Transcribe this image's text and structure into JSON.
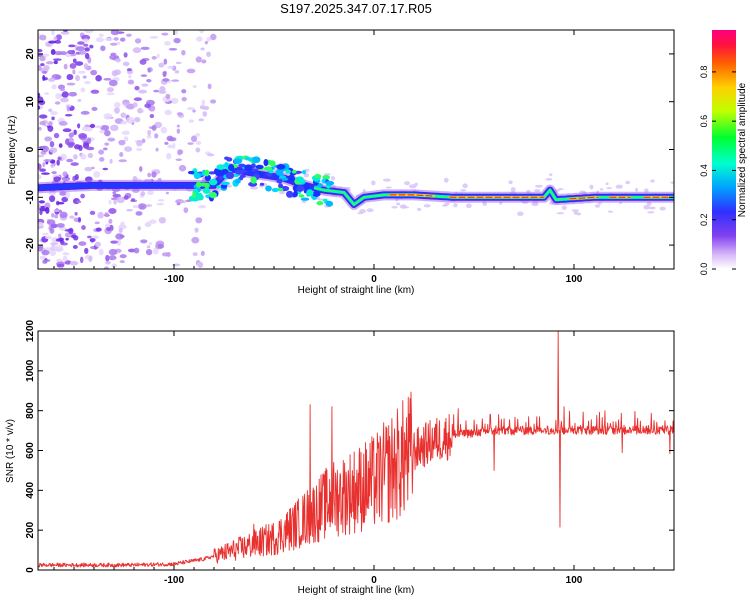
{
  "title": "S197.2025.347.07.17.R05",
  "colors": {
    "snr_line": "#e8312f",
    "spec_cloud": "#b48cf0",
    "spec_cloud_dark": "#6a1fe0",
    "axis": "#000000"
  },
  "chart_data": [
    {
      "type": "heatmap",
      "name": "spectrogram",
      "xlabel": "Height of straight line (km)",
      "ylabel": "Frequency (Hz)",
      "xlim": [
        -168,
        150
      ],
      "ylim": [
        -25,
        25
      ],
      "x_ticks": [
        -100,
        0,
        100
      ],
      "x_tick_labels": [
        "-100",
        "0",
        "100"
      ],
      "y_ticks": [
        20,
        10,
        0,
        -10,
        -20
      ],
      "y_tick_labels": [
        "20",
        "10",
        "0",
        "-10",
        "-20"
      ],
      "ridge": [
        {
          "x": -168,
          "y": -8
        },
        {
          "x": -140,
          "y": -7.5
        },
        {
          "x": -110,
          "y": -7.5
        },
        {
          "x": -90,
          "y": -7.5
        },
        {
          "x": -80,
          "y": -7.5
        },
        {
          "x": -72,
          "y": -4
        },
        {
          "x": -60,
          "y": -5
        },
        {
          "x": -45,
          "y": -6
        },
        {
          "x": -35,
          "y": -7.5
        },
        {
          "x": -25,
          "y": -8.5
        },
        {
          "x": -15,
          "y": -9
        },
        {
          "x": -10,
          "y": -11.5
        },
        {
          "x": -5,
          "y": -10
        },
        {
          "x": 5,
          "y": -9.5
        },
        {
          "x": 20,
          "y": -9.5
        },
        {
          "x": 40,
          "y": -10
        },
        {
          "x": 60,
          "y": -10
        },
        {
          "x": 85,
          "y": -10
        },
        {
          "x": 88,
          "y": -8.5
        },
        {
          "x": 91,
          "y": -10.5
        },
        {
          "x": 110,
          "y": -10
        },
        {
          "x": 150,
          "y": -10
        }
      ],
      "colorbar": {
        "label": "Normalized spectral amplitude",
        "ticks": [
          0.0,
          0.2,
          0.4,
          0.6,
          0.8
        ],
        "tick_labels": [
          "0.0",
          "0.2",
          "0.4",
          "0.6",
          "0.8"
        ],
        "range": [
          0,
          0.97
        ],
        "stops": [
          "#ffffff",
          "#b070f0",
          "#3030ff",
          "#00e0ff",
          "#00ff40",
          "#e0ff00",
          "#ff8000",
          "#ff2040",
          "#ff0080"
        ]
      }
    },
    {
      "type": "line",
      "name": "snr",
      "xlabel": "Height of straight line (km)",
      "ylabel": "SNR (10 * v/v)",
      "xlim": [
        -168,
        150
      ],
      "ylim": [
        0,
        1200
      ],
      "x_ticks": [
        -100,
        0,
        100
      ],
      "x_tick_labels": [
        "-100",
        "0",
        "100"
      ],
      "y_ticks": [
        0,
        200,
        400,
        600,
        800,
        1000,
        1200
      ],
      "y_tick_labels": [
        "0",
        "200",
        "400",
        "600",
        "800",
        "1000",
        "1200"
      ],
      "envelope": [
        {
          "x": -168,
          "y": 25
        },
        {
          "x": -120,
          "y": 25
        },
        {
          "x": -100,
          "y": 30
        },
        {
          "x": -85,
          "y": 55
        },
        {
          "x": -75,
          "y": 85
        },
        {
          "x": -60,
          "y": 130
        },
        {
          "x": -50,
          "y": 160
        },
        {
          "x": -40,
          "y": 220
        },
        {
          "x": -30,
          "y": 290
        },
        {
          "x": -20,
          "y": 360
        },
        {
          "x": -10,
          "y": 400
        },
        {
          "x": 0,
          "y": 440
        },
        {
          "x": 10,
          "y": 520
        },
        {
          "x": 20,
          "y": 600
        },
        {
          "x": 30,
          "y": 650
        },
        {
          "x": 40,
          "y": 680
        },
        {
          "x": 60,
          "y": 700
        },
        {
          "x": 90,
          "y": 705
        },
        {
          "x": 120,
          "y": 705
        },
        {
          "x": 150,
          "y": 705
        }
      ],
      "spikes": [
        {
          "x": -32,
          "y": 830
        },
        {
          "x": -21,
          "y": 820
        },
        {
          "x": -60,
          "y": 230
        },
        {
          "x": 92,
          "y": 1200
        },
        {
          "x": 93,
          "y": 215
        },
        {
          "x": 95,
          "y": 820
        },
        {
          "x": 60,
          "y": 500
        },
        {
          "x": 148,
          "y": 585
        },
        {
          "x": 124,
          "y": 590
        },
        {
          "x": 58,
          "y": 780
        },
        {
          "x": 42,
          "y": 810
        }
      ]
    }
  ]
}
